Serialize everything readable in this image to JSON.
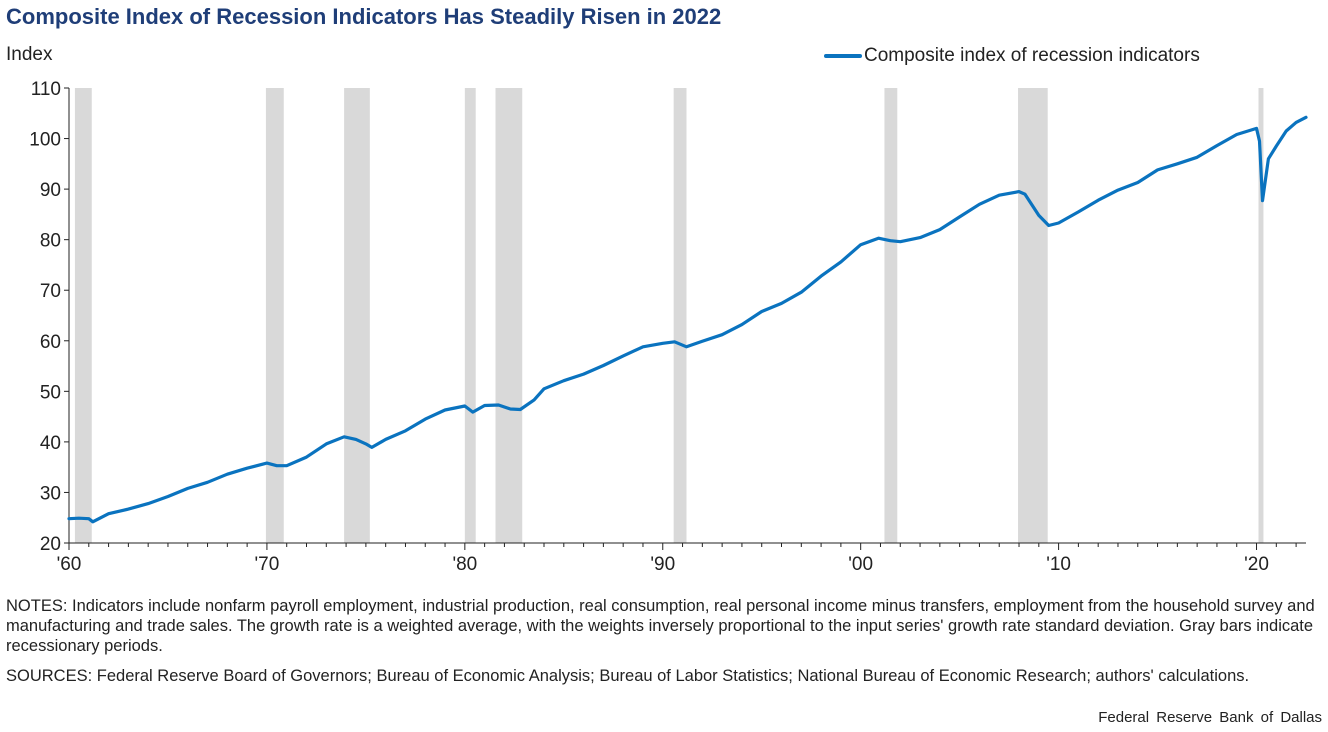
{
  "chart_data": {
    "type": "line",
    "title": "Composite Index of Recession Indicators Has Steadily Risen in 2022",
    "ylabel": "Index",
    "ylim": [
      20,
      110
    ],
    "xlim": [
      1960,
      2022.5
    ],
    "yticks": [
      "110",
      "100",
      "90",
      "80",
      "70",
      "60",
      "50",
      "40",
      "30",
      "20"
    ],
    "xticks": [
      {
        "label": "'60",
        "year": 1960
      },
      {
        "label": "'70",
        "year": 1970
      },
      {
        "label": "'80",
        "year": 1980
      },
      {
        "label": "'90",
        "year": 1990
      },
      {
        "label": "'00",
        "year": 2000
      },
      {
        "label": "'10",
        "year": 2010
      },
      {
        "label": "'20",
        "year": 2020
      }
    ],
    "legend": "top-right",
    "grid": false,
    "colors": {
      "series": "#0a73bf",
      "recession": "#d9d9d9",
      "title": "#1f3e78"
    },
    "recessions": [
      [
        1960.3,
        1961.15
      ],
      [
        1969.95,
        1970.85
      ],
      [
        1973.9,
        1975.2
      ],
      [
        1980.0,
        1980.55
      ],
      [
        1981.55,
        1982.9
      ],
      [
        1990.55,
        1991.2
      ],
      [
        2001.2,
        2001.85
      ],
      [
        2007.95,
        2009.45
      ],
      [
        2020.1,
        2020.35
      ]
    ],
    "series": [
      {
        "name": "Composite index of recession indicators",
        "x": [
          1960.0,
          1960.5,
          1961.0,
          1961.2,
          1962.0,
          1963.0,
          1964.0,
          1965.0,
          1966.0,
          1967.0,
          1968.0,
          1969.0,
          1970.0,
          1970.5,
          1971.0,
          1972.0,
          1973.0,
          1973.9,
          1974.5,
          1975.0,
          1975.3,
          1976.0,
          1977.0,
          1978.0,
          1979.0,
          1980.0,
          1980.4,
          1981.0,
          1981.7,
          1982.3,
          1982.8,
          1983.5,
          1984.0,
          1985.0,
          1986.0,
          1987.0,
          1988.0,
          1989.0,
          1990.0,
          1990.6,
          1991.2,
          1992.0,
          1993.0,
          1994.0,
          1995.0,
          1996.0,
          1997.0,
          1998.0,
          1999.0,
          2000.0,
          2000.9,
          2001.5,
          2002.0,
          2003.0,
          2004.0,
          2005.0,
          2006.0,
          2007.0,
          2008.0,
          2008.3,
          2009.0,
          2009.5,
          2010.0,
          2011.0,
          2012.0,
          2013.0,
          2014.0,
          2015.0,
          2016.0,
          2017.0,
          2018.0,
          2019.0,
          2020.0,
          2020.15,
          2020.3,
          2020.6,
          2021.0,
          2021.5,
          2022.0,
          2022.5
        ],
        "values": [
          24.8,
          24.9,
          24.8,
          24.2,
          25.8,
          26.7,
          27.8,
          29.2,
          30.8,
          32.0,
          33.6,
          34.8,
          35.8,
          35.3,
          35.3,
          37.0,
          39.6,
          41.0,
          40.5,
          39.6,
          38.9,
          40.5,
          42.2,
          44.5,
          46.3,
          47.1,
          45.9,
          47.2,
          47.3,
          46.5,
          46.4,
          48.3,
          50.5,
          52.1,
          53.4,
          55.1,
          57.0,
          58.8,
          59.5,
          59.8,
          58.8,
          59.9,
          61.2,
          63.2,
          65.8,
          67.4,
          69.6,
          72.8,
          75.6,
          79.0,
          80.3,
          79.8,
          79.6,
          80.4,
          82.0,
          84.5,
          87.0,
          88.8,
          89.5,
          89.0,
          84.8,
          82.8,
          83.3,
          85.5,
          87.8,
          89.8,
          91.3,
          93.8,
          95.0,
          96.3,
          98.6,
          100.8,
          102.0,
          99.5,
          87.7,
          96.0,
          98.5,
          101.5,
          103.2,
          104.2
        ]
      }
    ]
  },
  "notes": "NOTES: Indicators include nonfarm payroll employment, industrial production, real consumption, real personal income minus transfers, employment from the household survey and manufacturing and trade sales. The growth rate is a weighted average, with the weights inversely proportional to the input series' growth rate standard deviation. Gray bars indicate recessionary periods.",
  "sources": "SOURCES: Federal Reserve Board of Governors; Bureau of Economic Analysis; Bureau of Labor Statistics; National Bureau of Economic Research; authors' calculations.",
  "credit": "Federal Reserve Bank of Dallas"
}
